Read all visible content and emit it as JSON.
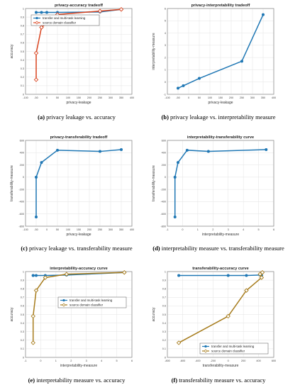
{
  "colors": {
    "blue": "#1f77b4",
    "red": "#d9431e",
    "olive": "#a67b1b",
    "grid": "#e3e3e3",
    "axis": "#888888"
  },
  "captions": [
    {
      "letter": "(a)",
      "text": "privacy leakage vs. accuracy"
    },
    {
      "letter": "(b)",
      "text": "privacy leakage vs. interpretability measure"
    },
    {
      "letter": "(c)",
      "text": "privacy leakage vs. transferability measure"
    },
    {
      "letter": "(d)",
      "text": "interpretability measure vs. transferability measure"
    },
    {
      "letter": "(e)",
      "text": "interpretability measure vs. accuracy"
    },
    {
      "letter": "(f)",
      "text": "transferability measure vs. accuracy"
    }
  ],
  "chart_data": [
    {
      "type": "line",
      "title": "privacy-accuracy tradeoff",
      "xlabel": "privacy-leakage",
      "ylabel": "accuracy",
      "xlim": [
        -100,
        400
      ],
      "ylim": [
        0,
        1
      ],
      "xticks": [
        -100,
        -50,
        0,
        50,
        100,
        150,
        200,
        250,
        300,
        350,
        400
      ],
      "yticks": [
        0,
        0.1,
        0.2,
        0.3,
        0.4,
        0.5,
        0.6,
        0.7,
        0.8,
        0.9,
        1
      ],
      "grid": true,
      "legend": "top-left",
      "series": [
        {
          "name": "transfer and multi-task learning",
          "color": "blue",
          "marker": "circle",
          "x": [
            -50,
            -25,
            0,
            50,
            250,
            350
          ],
          "y": [
            0.955,
            0.955,
            0.955,
            0.955,
            0.96,
            0.99
          ]
        },
        {
          "name": "source domain classifier",
          "color": "red",
          "marker": "diamond",
          "x": [
            -50,
            -50,
            -25,
            50,
            250,
            350
          ],
          "y": [
            0.17,
            0.48,
            0.78,
            0.93,
            0.97,
            0.99
          ]
        }
      ]
    },
    {
      "type": "line",
      "title": "privacy-interpretability tradeoff",
      "xlabel": "privacy-leakage",
      "ylabel": "interpretability-measure",
      "xlim": [
        -100,
        400
      ],
      "ylim": [
        -1,
        6
      ],
      "xticks": [
        -100,
        -50,
        0,
        50,
        100,
        150,
        200,
        250,
        300,
        350,
        400
      ],
      "yticks": [
        -1,
        0,
        1,
        2,
        3,
        4,
        5,
        6
      ],
      "grid": true,
      "legend": "",
      "series": [
        {
          "name": "",
          "color": "blue",
          "marker": "circle",
          "x": [
            -50,
            -25,
            50,
            250,
            350
          ],
          "y": [
            -0.5,
            -0.3,
            0.3,
            1.7,
            5.5
          ]
        }
      ]
    },
    {
      "type": "line",
      "title": "privacy-transferability tradeoff",
      "xlabel": "privacy-leakage",
      "ylabel": "transferability-measure",
      "xlim": [
        -100,
        400
      ],
      "ylim": [
        -800,
        600
      ],
      "xticks": [
        -100,
        -50,
        0,
        50,
        100,
        150,
        200,
        250,
        300,
        350,
        400
      ],
      "yticks": [
        -800,
        -600,
        -400,
        -200,
        0,
        200,
        400,
        600
      ],
      "grid": true,
      "legend": "",
      "series": [
        {
          "name": "",
          "color": "blue",
          "marker": "circle",
          "x": [
            -50,
            -50,
            -25,
            50,
            250,
            350
          ],
          "y": [
            -650,
            0,
            240,
            440,
            420,
            450
          ]
        }
      ]
    },
    {
      "type": "line",
      "title": "interpretability-transferability curve",
      "xlabel": "interpretability-measure",
      "ylabel": "transferability-measure",
      "xlim": [
        -1,
        6
      ],
      "ylim": [
        -800,
        600
      ],
      "xticks": [
        -1,
        0,
        1,
        2,
        3,
        4,
        5,
        6
      ],
      "yticks": [
        -800,
        -600,
        -400,
        -200,
        0,
        200,
        400,
        600
      ],
      "grid": true,
      "legend": "",
      "series": [
        {
          "name": "",
          "color": "blue",
          "marker": "circle",
          "x": [
            -0.5,
            -0.5,
            -0.3,
            0.3,
            1.7,
            5.5
          ],
          "y": [
            -650,
            0,
            240,
            440,
            420,
            450
          ]
        }
      ]
    },
    {
      "type": "line",
      "title": "interpretability-accuracy curve",
      "xlabel": "interpretability-measure",
      "ylabel": "accuracy",
      "xlim": [
        -1,
        6
      ],
      "ylim": [
        0,
        1
      ],
      "xticks": [
        -1,
        0,
        1,
        2,
        3,
        4,
        5,
        6
      ],
      "yticks": [
        0,
        0.1,
        0.2,
        0.3,
        0.4,
        0.5,
        0.6,
        0.7,
        0.8,
        0.9,
        1
      ],
      "grid": true,
      "legend": "middle-right",
      "series": [
        {
          "name": "transfer and multi-task learning",
          "color": "blue",
          "marker": "circle",
          "x": [
            -0.5,
            -0.5,
            -0.3,
            0.3,
            1.7,
            5.5
          ],
          "y": [
            0.955,
            0.955,
            0.955,
            0.955,
            0.96,
            0.99
          ]
        },
        {
          "name": "source domain classifier",
          "color": "olive",
          "marker": "diamond",
          "x": [
            -0.5,
            -0.5,
            -0.3,
            0.3,
            1.7,
            5.5
          ],
          "y": [
            0.17,
            0.48,
            0.78,
            0.93,
            0.97,
            0.99
          ]
        }
      ]
    },
    {
      "type": "line",
      "title": "transferability-accuracy curve",
      "xlabel": "transferability-measure",
      "ylabel": "accuracy",
      "xlim": [
        -800,
        600
      ],
      "ylim": [
        0,
        1
      ],
      "xticks": [
        -800,
        -600,
        -400,
        -200,
        0,
        200,
        400,
        600
      ],
      "yticks": [
        0,
        0.1,
        0.2,
        0.3,
        0.4,
        0.5,
        0.6,
        0.7,
        0.8,
        0.9,
        1
      ],
      "grid": true,
      "legend": "bottom-right",
      "series": [
        {
          "name": "transfer and multi-task learning",
          "color": "blue",
          "marker": "circle",
          "x": [
            -650,
            0,
            240,
            420,
            440,
            450
          ],
          "y": [
            0.955,
            0.955,
            0.955,
            0.96,
            0.955,
            0.99
          ]
        },
        {
          "name": "source domain classifier",
          "color": "olive",
          "marker": "diamond",
          "x": [
            -650,
            0,
            240,
            440,
            420,
            450
          ],
          "y": [
            0.17,
            0.48,
            0.78,
            0.93,
            0.97,
            0.99
          ]
        }
      ]
    }
  ]
}
